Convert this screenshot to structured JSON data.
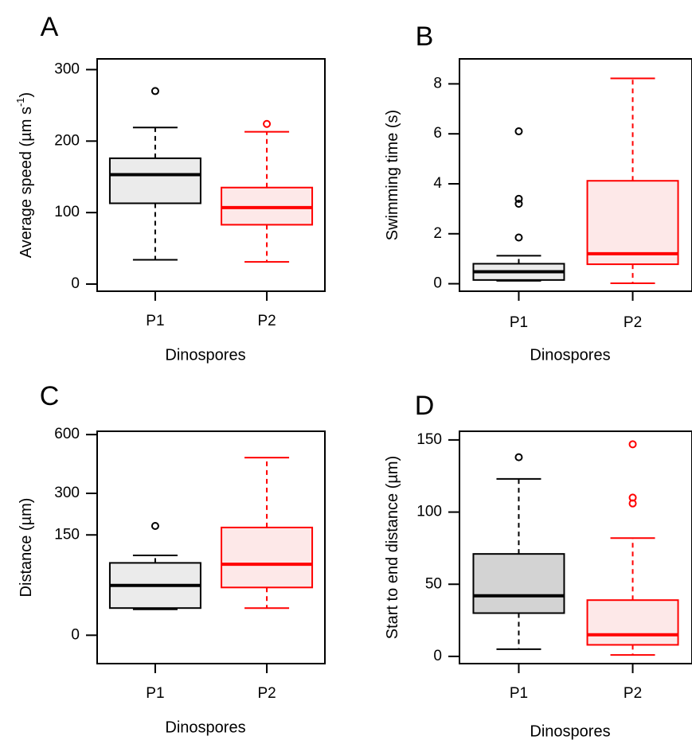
{
  "colors": {
    "P1": {
      "stroke": "#000000",
      "fill": "#ebebeb",
      "fill_dark": "#d3d3d3"
    },
    "P2": {
      "stroke": "#ff0000",
      "fill": "#fde8e8"
    }
  },
  "chart_data": [
    {
      "panel": "A",
      "type": "box",
      "xlabel": "Dinospores",
      "ylabel_main": "Average speed (µm s",
      "ylabel_sup": "-1",
      "ylabel_end": ")",
      "categories": [
        "P1",
        "P2"
      ],
      "y_ticks": [
        0,
        100,
        200,
        300
      ],
      "y_tick_labels": [
        "0",
        "100",
        "200",
        "300"
      ],
      "ylim": [
        -10,
        315
      ],
      "scale": "linear",
      "series": [
        {
          "category": "P1",
          "min": 34,
          "q1": 113,
          "median": 153,
          "q3": 176,
          "max": 219,
          "outliers": [
            270
          ]
        },
        {
          "category": "P2",
          "min": 31,
          "q1": 83,
          "median": 107,
          "q3": 135,
          "max": 213,
          "outliers": [
            224
          ]
        }
      ]
    },
    {
      "panel": "B",
      "type": "box",
      "xlabel": "Dinospores",
      "ylabel_main": "Swimming time (s)",
      "ylabel_sup": "",
      "ylabel_end": "",
      "categories": [
        "P1",
        "P2"
      ],
      "y_ticks": [
        0,
        2,
        4,
        6,
        8
      ],
      "y_tick_labels": [
        "0",
        "2",
        "4",
        "6",
        "8"
      ],
      "ylim": [
        -0.3,
        9.0
      ],
      "scale": "linear",
      "series": [
        {
          "category": "P1",
          "min": 0.12,
          "q1": 0.15,
          "median": 0.48,
          "q3": 0.8,
          "max": 1.12,
          "outliers": [
            1.85,
            3.2,
            3.4,
            6.1
          ]
        },
        {
          "category": "P2",
          "min": 0.02,
          "q1": 0.78,
          "median": 1.2,
          "q3": 4.12,
          "max": 8.22,
          "outliers": []
        }
      ]
    },
    {
      "panel": "C",
      "type": "box",
      "xlabel": "Dinospores",
      "ylabel_main": "Distance (µm)",
      "ylabel_sup": "",
      "ylabel_end": "",
      "categories": [
        "P1",
        "P2"
      ],
      "y_ticks": [
        0,
        150,
        300,
        600
      ],
      "y_tick_labels": [
        "0",
        "150",
        "300",
        "600"
      ],
      "ylim": [
        -12,
        620
      ],
      "scale": "sqrt",
      "series": [
        {
          "category": "P1",
          "min": 10,
          "q1": 11,
          "median": 37,
          "q3": 78,
          "max": 95,
          "outliers": [
            178
          ]
        },
        {
          "category": "P2",
          "min": 11,
          "q1": 34,
          "median": 75,
          "q3": 173,
          "max": 470,
          "outliers": []
        }
      ]
    },
    {
      "panel": "D",
      "type": "box",
      "xlabel": "Dinospores",
      "ylabel_main": "Start to end distance (µm)",
      "ylabel_sup": "",
      "ylabel_end": "",
      "categories": [
        "P1",
        "P2"
      ],
      "y_ticks": [
        0,
        50,
        100,
        150
      ],
      "y_tick_labels": [
        "0",
        "50",
        "100",
        "150"
      ],
      "ylim": [
        -5,
        156
      ],
      "scale": "linear",
      "series": [
        {
          "category": "P1",
          "min": 5,
          "q1": 30,
          "median": 42,
          "q3": 71,
          "max": 123,
          "outliers": [
            138
          ]
        },
        {
          "category": "P2",
          "min": 1,
          "q1": 8,
          "median": 15,
          "q3": 39,
          "max": 82,
          "outliers": [
            106,
            110,
            147
          ]
        }
      ]
    }
  ]
}
